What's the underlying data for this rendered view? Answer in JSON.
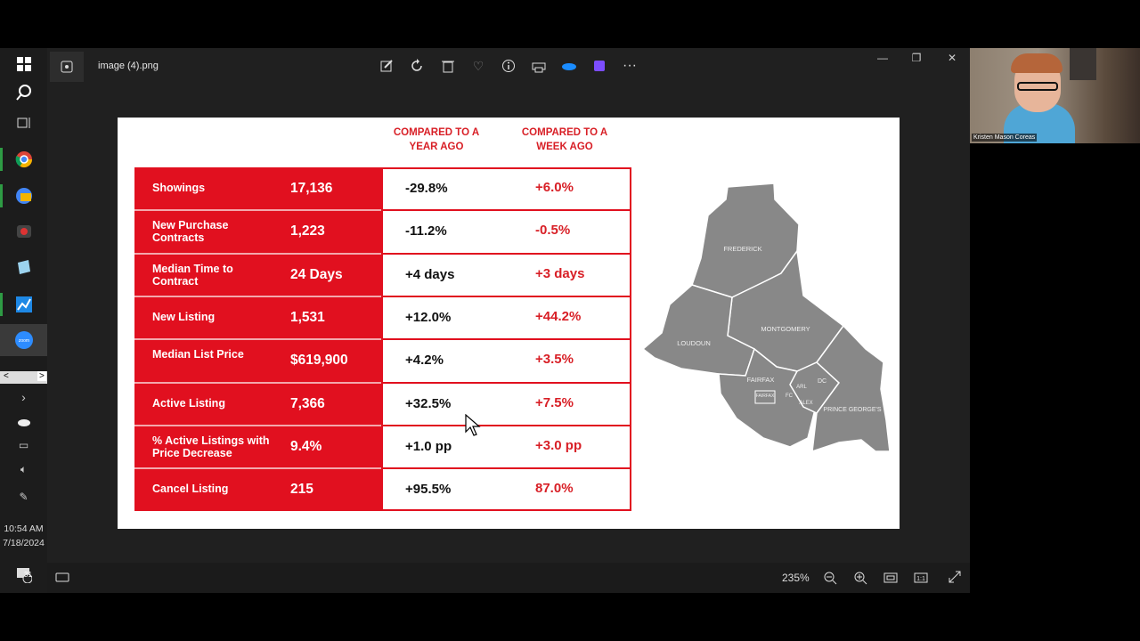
{
  "viewer": {
    "filename": "image (4).png",
    "zoom": "235%"
  },
  "taskbar": {
    "time": "10:54 AM",
    "date": "7/18/2024",
    "notification_count": "31"
  },
  "participant": {
    "name": "Kristen Mason Coreas"
  },
  "slide": {
    "header_year": "COMPARED TO A YEAR AGO",
    "header_week": "COMPARED TO A WEEK AGO",
    "rows": [
      {
        "label": "Showings",
        "value": "17,136",
        "year": "-29.8%",
        "week": "+6.0%"
      },
      {
        "label": "New Purchase Contracts",
        "value": "1,223",
        "year": "-11.2%",
        "week": "-0.5%"
      },
      {
        "label": "Median Time to Contract",
        "value": "24 Days",
        "year": "+4 days",
        "week": "+3 days"
      },
      {
        "label": "New Listing",
        "value": "1,531",
        "year": "+12.0%",
        "week": "+44.2%"
      },
      {
        "label": "Median List Price",
        "value": "$619,900",
        "year": "+4.2%",
        "week": "+3.5%"
      },
      {
        "label": "Active Listing",
        "value": "7,366",
        "year": "+32.5%",
        "week": "+7.5%"
      },
      {
        "label": "% Active Listings with Price Decrease",
        "value": "9.4%",
        "year": "+1.0 pp",
        "week": "+3.0 pp"
      },
      {
        "label": "Cancel Listing",
        "value": "215",
        "year": "+95.5%",
        "week": "87.0%"
      }
    ],
    "map_labels": {
      "frederick": "FREDERICK",
      "montgomery": "MONTGOMERY",
      "loudoun": "LOUDOUN",
      "fairfax": "FAIRFAX",
      "fairfax_city": "FAIRFAX",
      "arl": "ARL",
      "fc": "FC",
      "alex": "ALEX",
      "dc": "DC",
      "prince_georges": "PRINCE GEORGE'S"
    }
  },
  "colors": {
    "brand_red": "#e1101f",
    "map_gray": "#8a8a8a"
  }
}
